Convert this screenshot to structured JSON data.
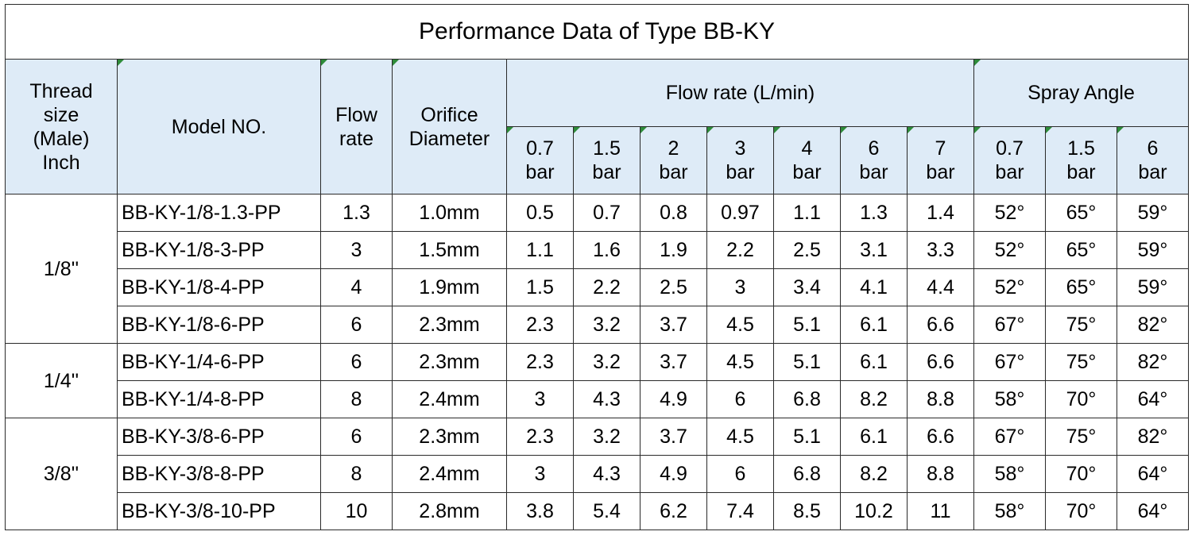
{
  "title": "Performance Data of Type BB-KY",
  "headers": {
    "thread": [
      "Thread",
      "size",
      "(Male)",
      "Inch"
    ],
    "model": "Model NO.",
    "flow_rate": [
      "Flow",
      "rate"
    ],
    "orifice": [
      "Orifice",
      "Diameter"
    ],
    "flow_group": "Flow rate (L/min)",
    "spray_group": "Spray Angle",
    "flow_pressures": [
      [
        "0.7",
        "bar"
      ],
      [
        "1.5",
        "bar"
      ],
      [
        "2",
        "bar"
      ],
      [
        "3",
        "bar"
      ],
      [
        "4",
        "bar"
      ],
      [
        "6",
        "bar"
      ],
      [
        "7",
        "bar"
      ]
    ],
    "spray_pressures": [
      [
        "0.7",
        "bar"
      ],
      [
        "1.5",
        "bar"
      ],
      [
        "6",
        "bar"
      ]
    ]
  },
  "groups": [
    {
      "thread": "1/8''",
      "rows": [
        {
          "model": "BB-KY-1/8-1.3-PP",
          "flow_rate": "1.3",
          "orifice": "1.0mm",
          "flows": [
            "0.5",
            "0.7",
            "0.8",
            "0.97",
            "1.1",
            "1.3",
            "1.4"
          ],
          "angles": [
            "52°",
            "65°",
            "59°"
          ]
        },
        {
          "model": "BB-KY-1/8-3-PP",
          "flow_rate": "3",
          "orifice": "1.5mm",
          "flows": [
            "1.1",
            "1.6",
            "1.9",
            "2.2",
            "2.5",
            "3.1",
            "3.3"
          ],
          "angles": [
            "52°",
            "65°",
            "59°"
          ]
        },
        {
          "model": "BB-KY-1/8-4-PP",
          "flow_rate": "4",
          "orifice": "1.9mm",
          "flows": [
            "1.5",
            "2.2",
            "2.5",
            "3",
            "3.4",
            "4.1",
            "4.4"
          ],
          "angles": [
            "52°",
            "65°",
            "59°"
          ]
        },
        {
          "model": "BB-KY-1/8-6-PP",
          "flow_rate": "6",
          "orifice": "2.3mm",
          "flows": [
            "2.3",
            "3.2",
            "3.7",
            "4.5",
            "5.1",
            "6.1",
            "6.6"
          ],
          "angles": [
            "67°",
            "75°",
            "82°"
          ]
        }
      ]
    },
    {
      "thread": "1/4''",
      "rows": [
        {
          "model": "BB-KY-1/4-6-PP",
          "flow_rate": "6",
          "orifice": "2.3mm",
          "flows": [
            "2.3",
            "3.2",
            "3.7",
            "4.5",
            "5.1",
            "6.1",
            "6.6"
          ],
          "angles": [
            "67°",
            "75°",
            "82°"
          ]
        },
        {
          "model": "BB-KY-1/4-8-PP",
          "flow_rate": "8",
          "orifice": "2.4mm",
          "flows": [
            "3",
            "4.3",
            "4.9",
            "6",
            "6.8",
            "8.2",
            "8.8"
          ],
          "angles": [
            "58°",
            "70°",
            "64°"
          ]
        }
      ]
    },
    {
      "thread": "3/8''",
      "rows": [
        {
          "model": "BB-KY-3/8-6-PP",
          "flow_rate": "6",
          "orifice": "2.3mm",
          "flows": [
            "2.3",
            "3.2",
            "3.7",
            "4.5",
            "5.1",
            "6.1",
            "6.6"
          ],
          "angles": [
            "67°",
            "75°",
            "82°"
          ]
        },
        {
          "model": "BB-KY-3/8-8-PP",
          "flow_rate": "8",
          "orifice": "2.4mm",
          "flows": [
            "3",
            "4.3",
            "4.9",
            "6",
            "6.8",
            "8.2",
            "8.8"
          ],
          "angles": [
            "58°",
            "70°",
            "64°"
          ]
        },
        {
          "model": "BB-KY-3/8-10-PP",
          "flow_rate": "10",
          "orifice": "2.8mm",
          "flows": [
            "3.8",
            "5.4",
            "6.2",
            "7.4",
            "8.5",
            "10.2",
            "11"
          ],
          "angles": [
            "58°",
            "70°",
            "64°"
          ]
        }
      ]
    }
  ]
}
